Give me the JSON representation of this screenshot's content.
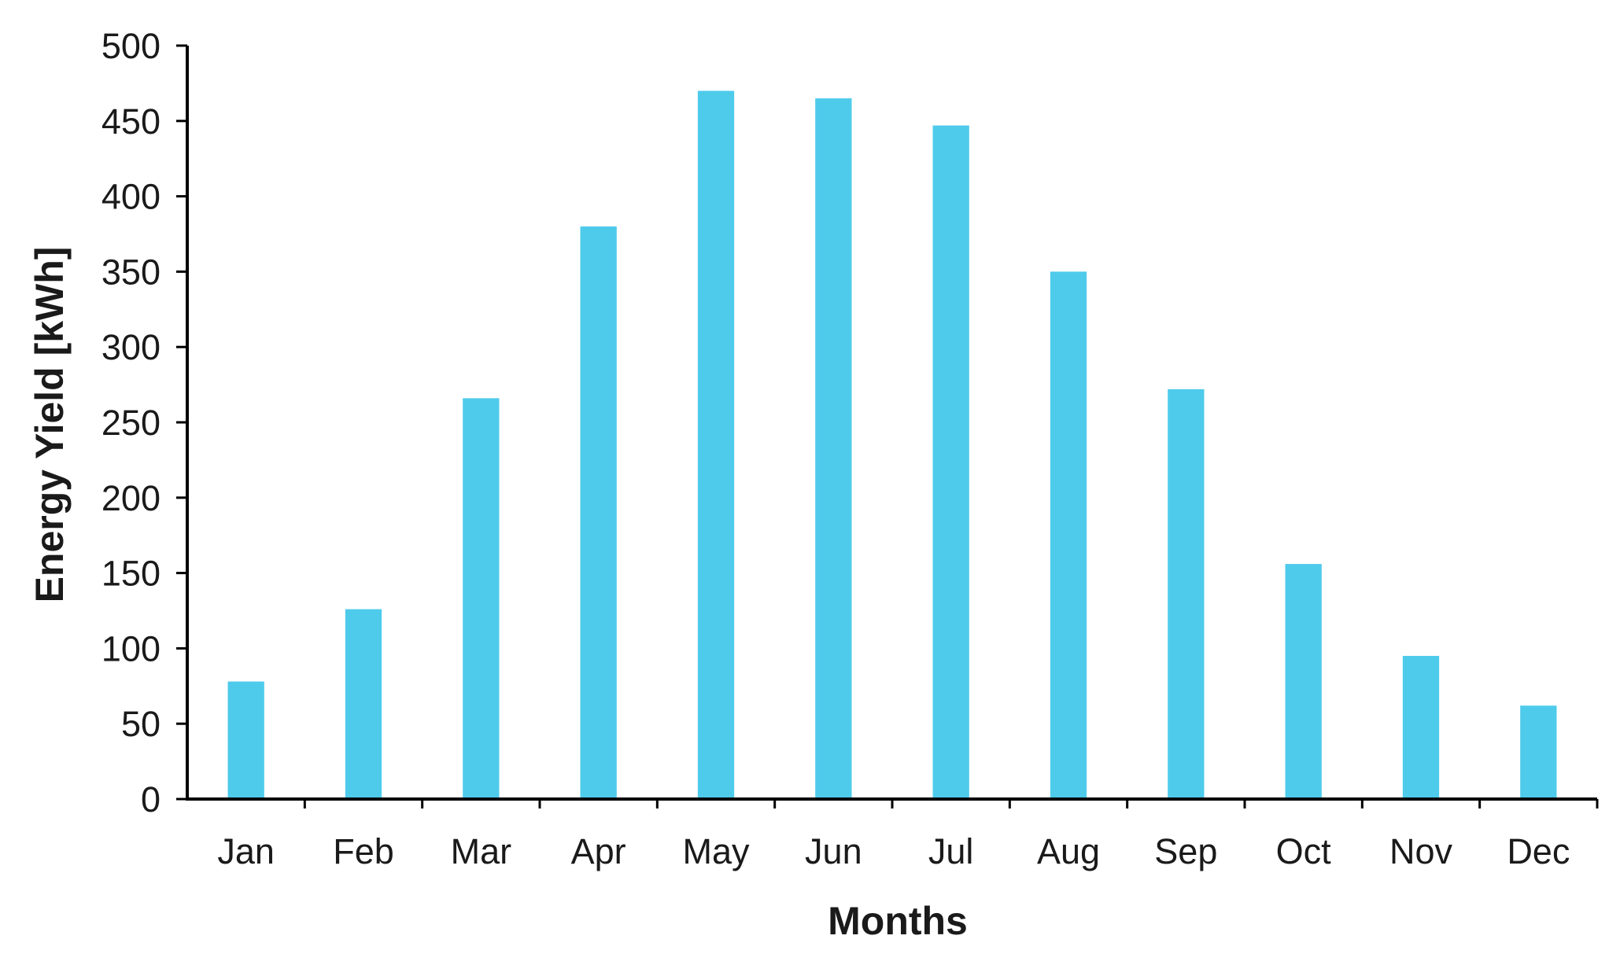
{
  "chart_data": {
    "type": "bar",
    "title": "",
    "xlabel": "Months",
    "ylabel": "Energy Yield [kWh]",
    "categories": [
      "Jan",
      "Feb",
      "Mar",
      "Apr",
      "May",
      "Jun",
      "Jul",
      "Aug",
      "Sep",
      "Oct",
      "Nov",
      "Dec"
    ],
    "series": [
      {
        "values": [
          78,
          126,
          266,
          380,
          470,
          465,
          447,
          350,
          272,
          156,
          95,
          62
        ],
        "color": "#4ECBEB"
      }
    ],
    "ylim": [
      0,
      500
    ],
    "yticks": [
      "0",
      "50",
      "100",
      "150",
      "200",
      "250",
      "300",
      "350",
      "400",
      "450",
      "500"
    ],
    "grid": false,
    "legend": "none",
    "axis_color": "#000000"
  }
}
